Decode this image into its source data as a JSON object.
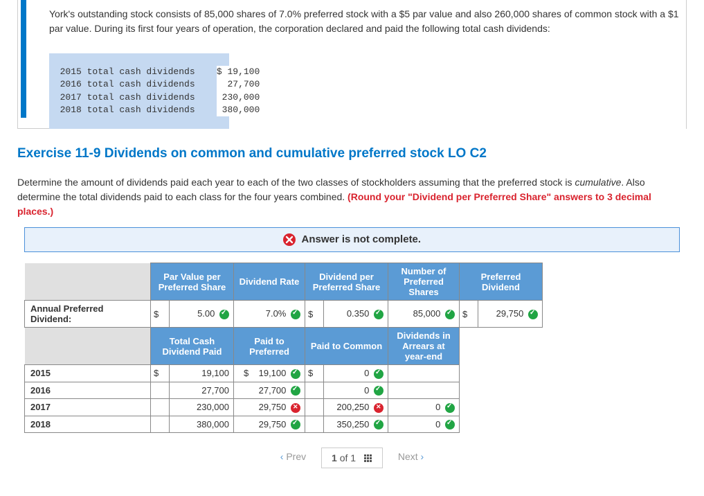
{
  "problem": {
    "intro": "York's outstanding stock consists of 85,000 shares of 7.0% preferred stock with a $5 par value and also 260,000 shares of common stock with a $1 par value. During its first four years of operation, the corporation declared and paid the following total cash dividends:",
    "rows": [
      {
        "label": "2015 total cash dividends",
        "amount": "$ 19,100"
      },
      {
        "label": "2016 total cash dividends",
        "amount": "  27,700"
      },
      {
        "label": "2017 total cash dividends",
        "amount": " 230,000"
      },
      {
        "label": "2018 total cash dividends",
        "amount": " 380,000"
      }
    ]
  },
  "exercise": {
    "title": "Exercise 11-9 Dividends on common and cumulative preferred stock LO C2",
    "instructions_pre": "Determine the amount of dividends paid each year to each of the two classes of stockholders assuming that the preferred stock is ",
    "italic": "cumulative",
    "instructions_post": ". Also determine the total dividends paid to each class for the four years combined. ",
    "red": "(Round your \"Dividend per Preferred Share\" answers to 3 decimal places.)"
  },
  "alert": "Answer is not complete.",
  "table": {
    "headers1": [
      "Par Value per Preferred Share",
      "Dividend Rate",
      "Dividend per Preferred Share",
      "Number of Preferred Shares",
      "Preferred Dividend"
    ],
    "annual_label": "Annual Preferred Dividend:",
    "annual": {
      "par": "5.00",
      "par_ok": true,
      "rate": "7.0%",
      "rate_ok": true,
      "dps": "0.350",
      "dps_ok": true,
      "shares": "85,000",
      "shares_ok": true,
      "div": "29,750",
      "div_ok": true
    },
    "headers2": [
      "Total Cash Dividend Paid",
      "Paid to Preferred",
      "Paid to Common",
      "Dividends in Arrears at year-end"
    ],
    "years": [
      {
        "y": "2015",
        "total": "19,100",
        "total_cur": "$",
        "pref": "19,100",
        "pref_cur": "$",
        "pref_ok": true,
        "com": "0",
        "com_cur": "$",
        "com_ok": true,
        "arr": "",
        "arr_ok": null
      },
      {
        "y": "2016",
        "total": "27,700",
        "total_cur": "",
        "pref": "27,700",
        "pref_cur": "",
        "pref_ok": true,
        "com": "0",
        "com_cur": "",
        "com_ok": true,
        "arr": "",
        "arr_ok": null
      },
      {
        "y": "2017",
        "total": "230,000",
        "total_cur": "",
        "pref": "29,750",
        "pref_cur": "",
        "pref_ok": false,
        "com": "200,250",
        "com_cur": "",
        "com_ok": false,
        "arr": "0",
        "arr_ok": true
      },
      {
        "y": "2018",
        "total": "380,000",
        "total_cur": "",
        "pref": "29,750",
        "pref_cur": "",
        "pref_ok": true,
        "com": "350,250",
        "com_cur": "",
        "com_ok": true,
        "arr": "0",
        "arr_ok": true
      }
    ]
  },
  "pager": {
    "prev": "Prev",
    "counter_a": "1",
    "counter_of": "of",
    "counter_b": "1",
    "next": "Next"
  },
  "colors": {
    "accent": "#0077c8",
    "header_bg": "#5b9bd5",
    "ok": "#21a544",
    "bad": "#d9232e",
    "alert_bg": "#e8f1fb"
  }
}
